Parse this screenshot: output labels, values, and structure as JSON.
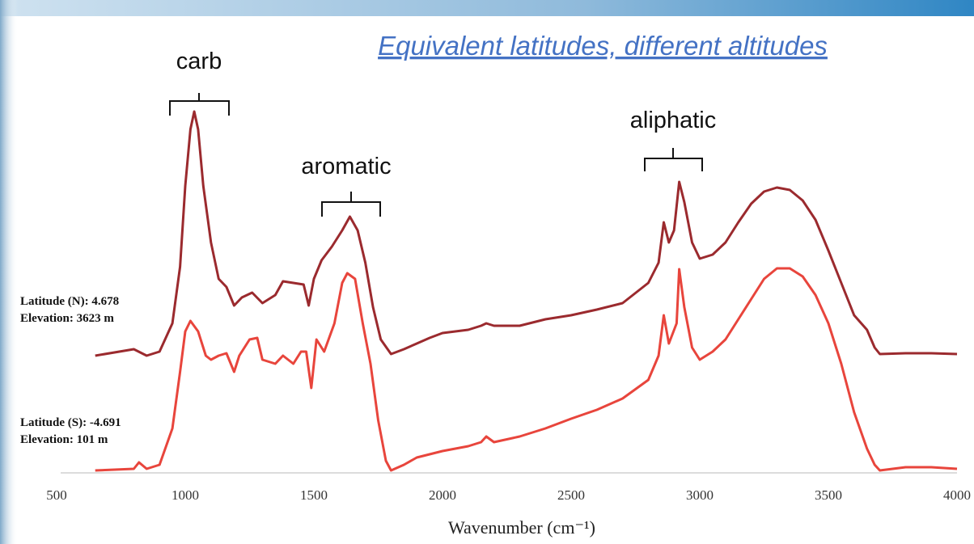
{
  "chart_data": {
    "type": "line",
    "title": "Equivalent latitudes, different altitudes",
    "x_label": "Wavenumber (cm⁻¹)",
    "xlim": [
      500,
      4000
    ],
    "xticks": [
      500,
      1000,
      1500,
      2000,
      2500,
      3000,
      3500,
      4000
    ],
    "ylim": [
      0,
      100
    ],
    "grid": false,
    "annotations": [
      "carb",
      "aromatic",
      "aliphatic"
    ],
    "series": [
      {
        "name": "Latitude (N): 4.678",
        "elevation": "Elevation: 3623 m",
        "color": "#9b2a2e",
        "x": [
          650,
          800,
          850,
          900,
          950,
          980,
          1000,
          1020,
          1035,
          1050,
          1070,
          1100,
          1130,
          1160,
          1190,
          1220,
          1260,
          1300,
          1350,
          1380,
          1420,
          1460,
          1480,
          1500,
          1530,
          1570,
          1610,
          1640,
          1670,
          1700,
          1730,
          1760,
          1800,
          1850,
          1900,
          1950,
          2000,
          2100,
          2150,
          2170,
          2200,
          2300,
          2400,
          2500,
          2600,
          2700,
          2800,
          2840,
          2860,
          2880,
          2900,
          2920,
          2940,
          2970,
          3000,
          3050,
          3100,
          3150,
          3200,
          3250,
          3300,
          3350,
          3400,
          3450,
          3500,
          3550,
          3600,
          3650,
          3680,
          3700,
          3800,
          3900,
          4000
        ],
        "values": [
          29,
          30.6,
          29,
          30,
          37,
          51,
          71,
          85,
          89.4,
          85,
          71,
          57,
          48,
          46,
          41.4,
          43.4,
          44.6,
          42,
          44,
          47.4,
          47,
          46.6,
          41.4,
          48,
          52.6,
          56,
          60,
          63.4,
          60,
          52,
          41,
          33,
          29.4,
          30.6,
          32,
          33.4,
          34.6,
          35.4,
          36.4,
          37,
          36.4,
          36.4,
          38,
          39,
          40.4,
          42,
          47,
          52,
          62,
          57,
          60,
          72,
          67,
          57,
          53,
          54,
          57,
          62,
          66.6,
          69.6,
          70.6,
          70,
          67.4,
          62.6,
          55,
          47,
          39,
          35.4,
          31,
          29.4,
          29.6,
          29.6,
          29.4
        ]
      },
      {
        "name": "Latitude (S): -4.691",
        "elevation": "Elevation: 101 m",
        "color": "#e8453c",
        "x": [
          650,
          800,
          820,
          850,
          900,
          950,
          980,
          1000,
          1020,
          1050,
          1080,
          1100,
          1130,
          1160,
          1190,
          1210,
          1250,
          1280,
          1300,
          1350,
          1380,
          1420,
          1450,
          1470,
          1490,
          1510,
          1540,
          1580,
          1610,
          1630,
          1660,
          1690,
          1720,
          1750,
          1780,
          1800,
          1850,
          1900,
          2000,
          2100,
          2150,
          2170,
          2200,
          2300,
          2400,
          2500,
          2600,
          2700,
          2800,
          2840,
          2860,
          2880,
          2910,
          2920,
          2940,
          2970,
          3000,
          3050,
          3100,
          3150,
          3200,
          3250,
          3300,
          3350,
          3400,
          3450,
          3500,
          3550,
          3600,
          3650,
          3680,
          3700,
          3800,
          3900,
          4000
        ],
        "values": [
          0.6,
          1,
          2.6,
          1,
          2,
          11,
          25,
          35,
          37.6,
          35,
          29,
          28,
          29,
          29.6,
          25,
          29,
          33,
          33.4,
          28,
          27,
          29,
          27,
          30,
          30,
          21,
          33,
          30,
          37,
          47,
          49.4,
          48,
          37,
          27,
          13,
          3,
          0.6,
          2,
          3.8,
          5.4,
          6.6,
          7.6,
          9,
          7.6,
          9,
          11,
          13.4,
          15.6,
          18.4,
          23,
          29,
          39,
          32,
          37,
          50.4,
          41,
          31,
          28,
          30,
          33,
          38,
          43,
          48,
          50.6,
          50.6,
          48.6,
          44,
          37,
          27,
          15,
          6,
          2,
          0.6,
          1.4,
          1.4,
          1
        ]
      }
    ]
  }
}
